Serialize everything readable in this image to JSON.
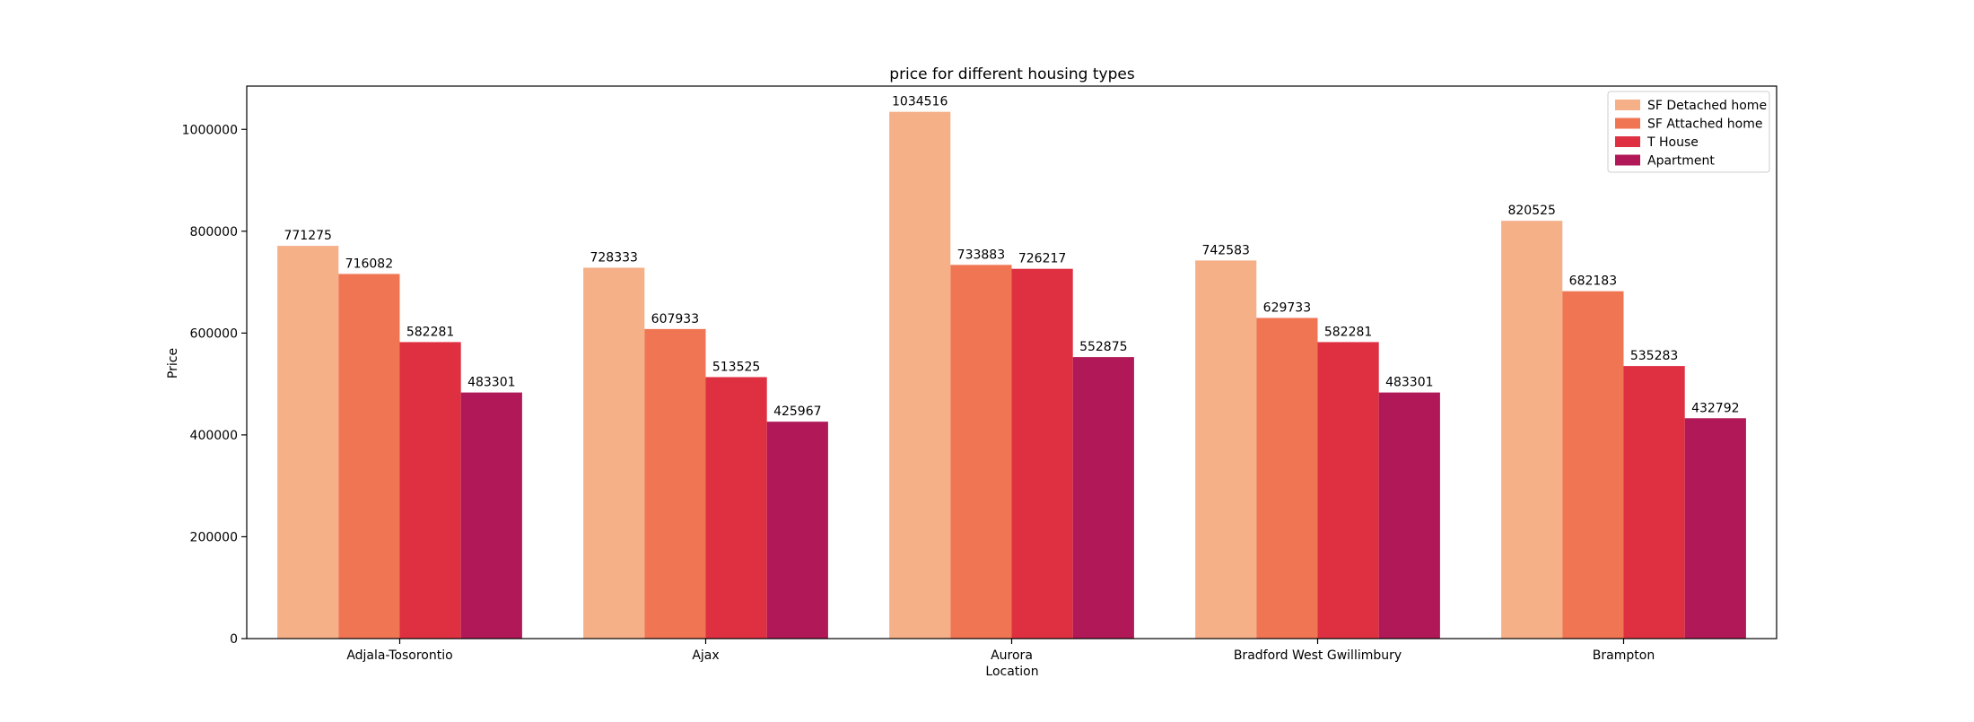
{
  "chart_data": {
    "type": "bar",
    "title": "price for different housing types",
    "xlabel": "Location",
    "ylabel": "Price",
    "categories": [
      "Adjala-Tosorontio",
      "Ajax",
      "Aurora",
      "Bradford West Gwillimbury",
      "Brampton"
    ],
    "series": [
      {
        "name": "SF Detached home",
        "color": "#f5b088",
        "values": [
          771275,
          728333,
          1034516,
          742583,
          820525
        ]
      },
      {
        "name": "SF Attached home",
        "color": "#f07553",
        "values": [
          716082,
          607933,
          733883,
          629733,
          682183
        ]
      },
      {
        "name": "T House",
        "color": "#de3040",
        "values": [
          582281,
          513525,
          726217,
          582281,
          535283
        ]
      },
      {
        "name": "Apartment",
        "color": "#b01857",
        "values": [
          483301,
          425967,
          552875,
          483301,
          432792
        ]
      }
    ],
    "ylim": [
      0,
      1085000
    ],
    "yticks": [
      0,
      200000,
      400000,
      600000,
      800000,
      1000000
    ],
    "grid": false,
    "legend_position": "top-right"
  }
}
